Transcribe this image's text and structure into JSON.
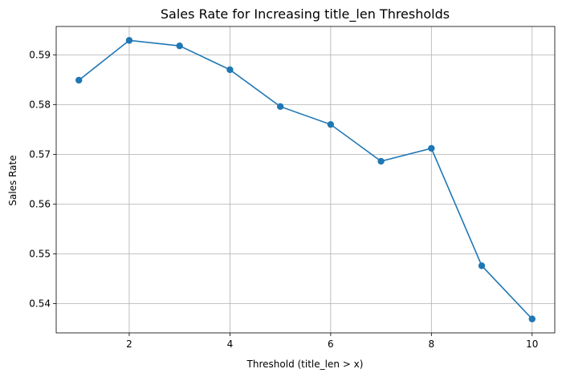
{
  "chart_data": {
    "type": "line",
    "title": "Sales Rate for Increasing title_len Thresholds",
    "xlabel": "Threshold (title_len > x)",
    "ylabel": "Sales Rate",
    "x": [
      1,
      2,
      3,
      4,
      5,
      6,
      7,
      8,
      9,
      10
    ],
    "series": [
      {
        "values": [
          0.5849,
          0.5929,
          0.5918,
          0.587,
          0.5796,
          0.576,
          0.5686,
          0.5712,
          0.5476,
          0.5369
        ],
        "color": "#1f77b4",
        "marker": "circle"
      }
    ],
    "xlim": [
      0.55,
      10.45
    ],
    "ylim": [
      0.5341,
      0.5957
    ],
    "xticks": [
      2,
      4,
      6,
      8,
      10
    ],
    "xtick_labels": [
      "2",
      "4",
      "6",
      "8",
      "10"
    ],
    "yticks": [
      0.54,
      0.55,
      0.56,
      0.57,
      0.58,
      0.59
    ],
    "ytick_labels": [
      "0.54",
      "0.55",
      "0.56",
      "0.57",
      "0.58",
      "0.59"
    ],
    "grid": true,
    "legend": "none"
  }
}
